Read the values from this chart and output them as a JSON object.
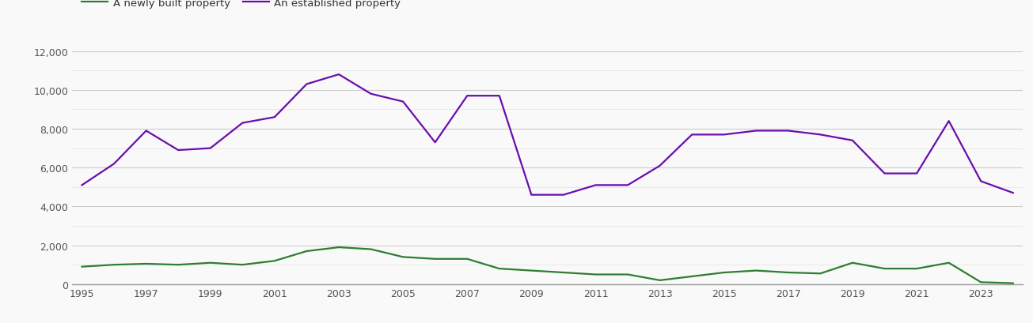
{
  "years": [
    1995,
    1996,
    1997,
    1998,
    1999,
    2000,
    2001,
    2002,
    2003,
    2004,
    2005,
    2006,
    2007,
    2008,
    2009,
    2010,
    2011,
    2012,
    2013,
    2014,
    2015,
    2016,
    2017,
    2018,
    2019,
    2020,
    2021,
    2022,
    2023,
    2024
  ],
  "newly_built": [
    900,
    1000,
    1050,
    1000,
    1100,
    1000,
    1200,
    1700,
    1900,
    1800,
    1400,
    1300,
    1300,
    800,
    700,
    600,
    500,
    500,
    200,
    400,
    600,
    700,
    600,
    550,
    1100,
    800,
    800,
    1100,
    100,
    50
  ],
  "established": [
    5100,
    6200,
    7900,
    6900,
    7000,
    8300,
    8600,
    10300,
    10800,
    9800,
    9400,
    7300,
    9700,
    9700,
    4600,
    4600,
    5100,
    5100,
    6100,
    7700,
    7700,
    7900,
    7900,
    7700,
    7400,
    5700,
    5700,
    8400,
    5300,
    4700
  ],
  "newly_built_color": "#2e7d32",
  "established_color": "#6a0dad",
  "legend_newly_built": "A newly built property",
  "legend_established": "An established property",
  "ylim": [
    0,
    12500
  ],
  "major_yticks": [
    0,
    2000,
    4000,
    6000,
    8000,
    10000,
    12000
  ],
  "minor_yticks": [
    1000,
    3000,
    5000,
    7000,
    9000,
    11000
  ],
  "ytick_labels": [
    "0",
    "2,000",
    "4,000",
    "6,000",
    "8,000",
    "10,000",
    "12,000"
  ],
  "xticks": [
    1995,
    1997,
    1999,
    2001,
    2003,
    2005,
    2007,
    2009,
    2011,
    2013,
    2015,
    2017,
    2019,
    2021,
    2023
  ],
  "background_color": "#f9f9f9",
  "grid_color_major": "#cccccc",
  "grid_color_minor": "#e5e5e5",
  "line_width": 1.6,
  "figsize": [
    13.05,
    4.1
  ],
  "dpi": 100
}
